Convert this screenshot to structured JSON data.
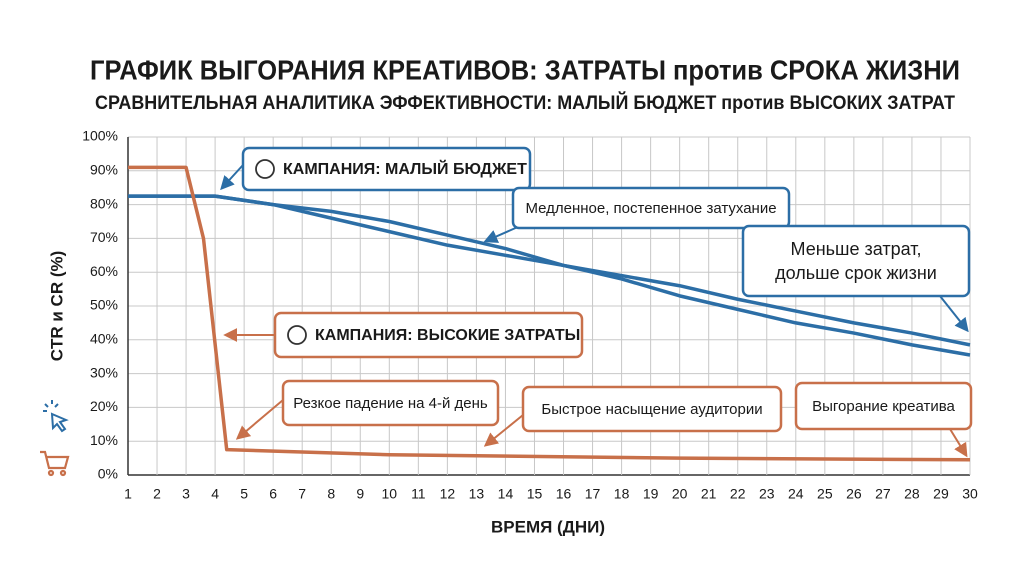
{
  "chart_data": {
    "type": "line",
    "title": "ГРАФИК ВЫГОРАНИЯ КРЕАТИВОВ: ЗАТРАТЫ против СРОКА ЖИЗНИ",
    "subtitle": "СРАВНИТЕЛЬНАЯ АНАЛИТИКА ЭФФЕКТИВНОСТИ: МАЛЫЙ БЮДЖЕТ против ВЫСОКИХ ЗАТРАТ",
    "y_label": "CTR и CR (%)",
    "x_label": "ВРЕМЯ (ДНИ)",
    "xlim": [
      1,
      30
    ],
    "ylim": [
      0,
      100
    ],
    "xticks": [
      1,
      2,
      3,
      4,
      5,
      6,
      7,
      8,
      9,
      10,
      11,
      12,
      13,
      14,
      15,
      16,
      17,
      18,
      19,
      20,
      21,
      22,
      23,
      24,
      25,
      26,
      27,
      28,
      29,
      30
    ],
    "yticks": [
      {
        "value": 0,
        "label": "0%"
      },
      {
        "value": 10,
        "label": "10%"
      },
      {
        "value": 20,
        "label": "20%"
      },
      {
        "value": 30,
        "label": "30%"
      },
      {
        "value": 40,
        "label": "40%"
      },
      {
        "value": 50,
        "label": "50%"
      },
      {
        "value": 60,
        "label": "60%"
      },
      {
        "value": 70,
        "label": "70%"
      },
      {
        "value": 80,
        "label": "80%"
      },
      {
        "value": 90,
        "label": "90%"
      },
      {
        "value": 100,
        "label": "100%"
      }
    ],
    "grid": true,
    "series": [
      {
        "name": "КАМПАНИЯ: МАЛЫЙ БЮДЖЕТ",
        "color": "#2c6ea6",
        "x": [
          1,
          4,
          6,
          8,
          10,
          12,
          14,
          16,
          18,
          20,
          22,
          24,
          26,
          28,
          30
        ],
        "values": [
          82.5,
          82.5,
          80,
          78,
          75,
          71,
          67,
          62,
          58,
          53,
          49,
          45,
          42,
          38.5,
          35.5
        ]
      },
      {
        "color": "#2c6ea6",
        "x": [
          1,
          4,
          6,
          8,
          10,
          12,
          14,
          16,
          18,
          20,
          22,
          24,
          26,
          28,
          30
        ],
        "values": [
          82.5,
          82.5,
          80,
          76,
          72,
          68,
          65,
          62,
          59,
          56,
          52,
          48.5,
          45,
          42,
          38.5
        ]
      },
      {
        "name": "КАМПАНИЯ: ВЫСОКИЕ ЗАТРАТЫ",
        "color": "#c8704a",
        "x": [
          1,
          3,
          3.6,
          4.4,
          10,
          20,
          30
        ],
        "values": [
          91,
          91,
          70,
          7.5,
          6,
          5,
          4.5
        ]
      }
    ],
    "annotations": [
      [
        "Медленное, постепенное затухание"
      ],
      [
        "Меньше затрат,",
        "дольше срок жизни"
      ],
      [
        "Резкое падение на 4-й день"
      ],
      [
        "Быстрое насыщение аудитории"
      ],
      [
        "Выгорание креатива"
      ]
    ]
  }
}
